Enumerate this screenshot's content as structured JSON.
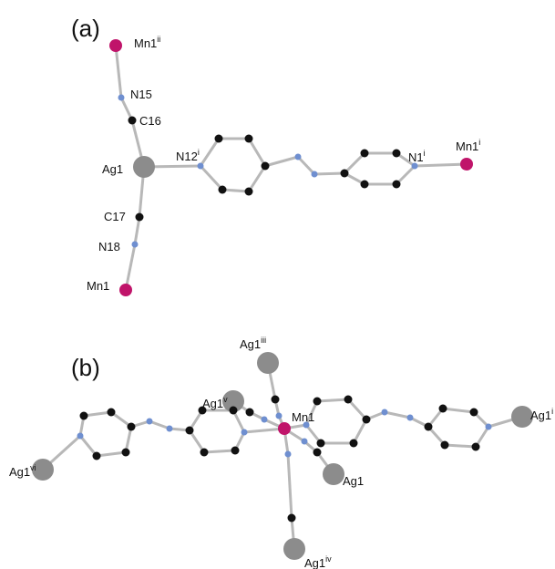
{
  "panels": [
    {
      "label": "(a)",
      "atoms": [
        {
          "text": "Mn1",
          "sup": "ii"
        },
        {
          "text": "N15"
        },
        {
          "text": "C16"
        },
        {
          "text": "Ag1"
        },
        {
          "text": "N12",
          "sup": "i"
        },
        {
          "text": "N1",
          "sup": "i"
        },
        {
          "text": "Mn1",
          "sup": "i"
        },
        {
          "text": "C17"
        },
        {
          "text": "N18"
        },
        {
          "text": "Mn1"
        }
      ]
    },
    {
      "label": "(b)",
      "atoms": [
        {
          "text": "Ag1",
          "sup": "iii"
        },
        {
          "text": "Ag1",
          "sup": "v"
        },
        {
          "text": "Mn1"
        },
        {
          "text": "Ag1",
          "sup": "i"
        },
        {
          "text": "Ag1",
          "sup": "vi"
        },
        {
          "text": "Ag1"
        },
        {
          "text": "Ag1",
          "sup": "iv"
        }
      ]
    }
  ]
}
